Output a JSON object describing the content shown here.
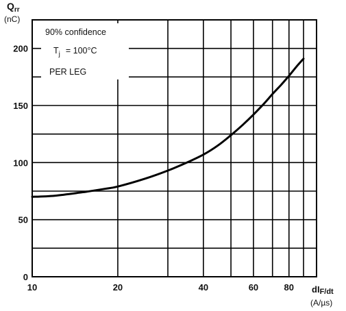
{
  "chart_data": {
    "type": "line",
    "title": "",
    "y_axis": {
      "symbol": "Q",
      "symbol_sub": "rr",
      "unit": "(nC)",
      "scale": "linear",
      "ylim": [
        0,
        225
      ],
      "tick_values": [
        0,
        50,
        100,
        150,
        200
      ],
      "tick_labels": [
        "0",
        "50",
        "100",
        "150",
        "200"
      ],
      "minor_gridlines": [
        25,
        75,
        125,
        175
      ]
    },
    "x_axis": {
      "label_main": "dI",
      "label_sub": "F/dt",
      "unit": "(A/µs)",
      "scale": "log",
      "xlim": [
        10,
        100
      ],
      "tick_values": [
        10,
        20,
        40,
        60,
        80
      ],
      "tick_labels": [
        "10",
        "20",
        "40",
        "60",
        "80"
      ],
      "gridlines": [
        20,
        30,
        40,
        50,
        60,
        70,
        80,
        90
      ]
    },
    "annotations": {
      "line1": "90% confidence",
      "tj_symbol": "T",
      "tj_sub": "j",
      "tj_value": "= 100°C",
      "line3": "PER LEG"
    },
    "series": [
      {
        "x": [
          10,
          12,
          15,
          18,
          20,
          25,
          30,
          35,
          40,
          45,
          50,
          55,
          60,
          65,
          70,
          75,
          80,
          85,
          90
        ],
        "y": [
          70,
          71,
          74,
          77,
          79,
          86,
          93,
          100,
          107,
          115,
          124,
          133,
          142,
          151,
          160,
          168,
          176,
          184,
          191
        ]
      }
    ],
    "grid": true,
    "line_color": "#000000"
  }
}
